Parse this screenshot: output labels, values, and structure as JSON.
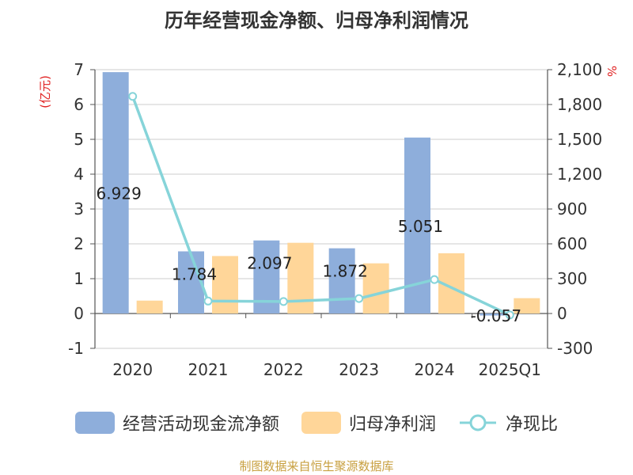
{
  "title": "历年经营现金净额、归母净利润情况",
  "source": "制图数据来自恒生聚源数据库",
  "colors": {
    "cash": "#8eaedb",
    "profit": "#ffd699",
    "ratio": "#86d4d9",
    "axis": "#555555",
    "grid": "#cccccc",
    "unit": "#e02020"
  },
  "chart_data": {
    "type": "bar",
    "title": "历年经营现金净额、归母净利润情况",
    "categories": [
      "2020",
      "2021",
      "2022",
      "2023",
      "2024",
      "2025Q1"
    ],
    "series": [
      {
        "name": "经营活动现金流净额",
        "type": "bar",
        "axis": "left",
        "values": [
          6.929,
          1.784,
          2.097,
          1.872,
          5.051,
          -0.057
        ]
      },
      {
        "name": "归母净利润",
        "type": "bar",
        "axis": "left",
        "values": [
          0.37,
          1.65,
          2.03,
          1.44,
          1.73,
          0.44
        ]
      },
      {
        "name": "净现比",
        "type": "line",
        "axis": "right",
        "values": [
          1870,
          107,
          103,
          129,
          292,
          -13
        ]
      }
    ],
    "data_labels": [
      "6.929",
      "1.784",
      "2.097",
      "1.872",
      "5.051",
      "-0.057"
    ],
    "ylabel_left": "(亿元)",
    "ylabel_right": "%",
    "ylim_left": [
      -1,
      7
    ],
    "yticks_left": [
      "-1",
      "0",
      "1",
      "2",
      "3",
      "4",
      "5",
      "6",
      "7"
    ],
    "ylim_right": [
      -300,
      2100
    ],
    "yticks_right": [
      "-300",
      "0",
      "300",
      "600",
      "900",
      "1,200",
      "1,500",
      "1,800",
      "2,100"
    ],
    "grid": true,
    "legend_position": "bottom"
  }
}
